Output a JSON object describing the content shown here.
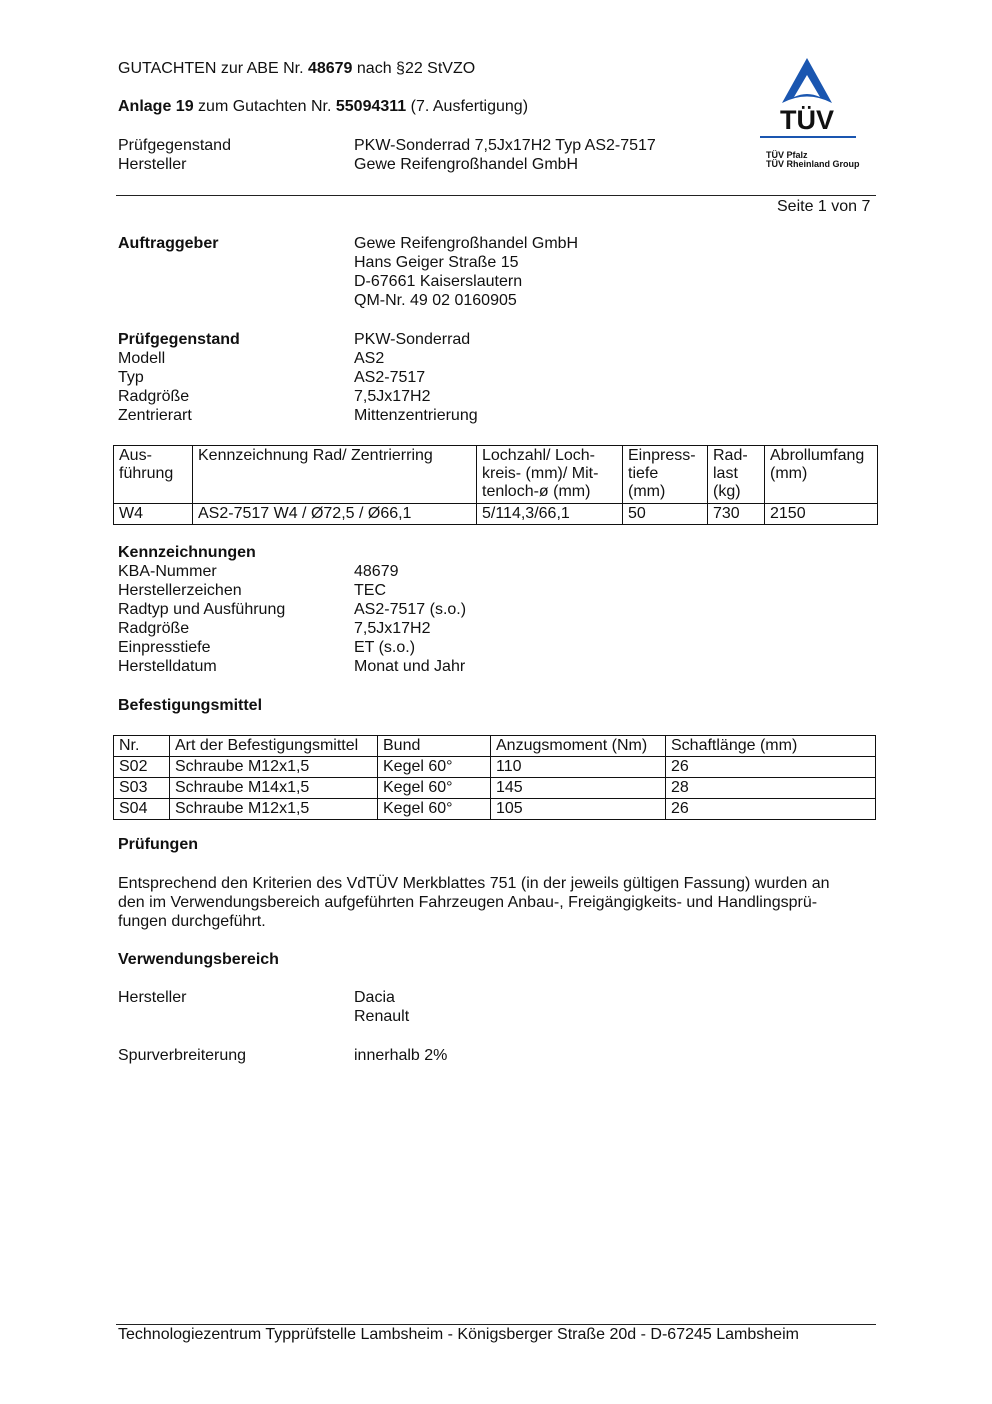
{
  "header": {
    "line1_pre": "GUTACHTEN zur ABE Nr. ",
    "line1_num": "48679",
    "line1_post": " nach §22 StVZO",
    "line2_pre": "Anlage 19",
    "line2_mid": " zum Gutachten Nr. ",
    "line2_num": "55094311",
    "line2_post": " (7. Ausfertigung)",
    "fields": [
      {
        "label": "Prüfgegenstand",
        "value": "PKW-Sonderrad 7,5Jx17H2 Typ AS2-7517"
      },
      {
        "label": "Hersteller",
        "value": "Gewe Reifengroßhandel GmbH"
      }
    ],
    "page": "Seite 1 von 7"
  },
  "logo": {
    "brand": "TÜV",
    "line1": "TÜV Pfalz",
    "line2": "TÜV Rheinland Group",
    "color": "#1a56b0"
  },
  "auftraggeber": {
    "label": "Auftraggeber",
    "lines": [
      "Gewe Reifengroßhandel GmbH",
      "Hans Geiger Straße 15",
      "D-67661 Kaiserslautern",
      "QM-Nr. 49 02 0160905"
    ]
  },
  "pruefgegenstand": {
    "rows": [
      {
        "label": "Prüfgegenstand",
        "value": "PKW-Sonderrad"
      },
      {
        "label": "Modell",
        "value": "AS2"
      },
      {
        "label": "Typ",
        "value": "AS2-7517"
      },
      {
        "label": "Radgröße",
        "value": "7,5Jx17H2"
      },
      {
        "label": "Zentrierart",
        "value": "Mittenzentrierung"
      }
    ]
  },
  "wheel_table": {
    "headers": [
      "Aus-\nführung",
      "Kennzeichnung Rad/ Zentrierring",
      "Lochzahl/ Loch-\nkreis- (mm)/ Mit-\ntenloch-ø (mm)",
      "Einpress-\ntiefe\n(mm)",
      "Rad-\nlast\n(kg)",
      "Abrollumfang\n(mm)"
    ],
    "rows": [
      [
        "W4",
        "AS2-7517 W4 / Ø72,5 / Ø66,1",
        "5/114,3/66,1",
        "50",
        "730",
        "2150"
      ]
    ]
  },
  "kennzeichnungen": {
    "title": "Kennzeichnungen",
    "rows": [
      {
        "label": "KBA-Nummer",
        "value": "48679"
      },
      {
        "label": "Herstellerzeichen",
        "value": "TEC"
      },
      {
        "label": "Radtyp und Ausführung",
        "value": "AS2-7517 (s.o.)"
      },
      {
        "label": "Radgröße",
        "value": "7,5Jx17H2"
      },
      {
        "label": "Einpresstiefe",
        "value": "ET (s.o.)"
      },
      {
        "label": "Herstelldatum",
        "value": "Monat und Jahr"
      }
    ]
  },
  "befestigung": {
    "title": "Befestigungsmittel",
    "headers": [
      "Nr.",
      "Art der Befestigungsmittel",
      "Bund",
      "Anzugsmoment (Nm)",
      "Schaftlänge (mm)"
    ],
    "rows": [
      [
        "S02",
        "Schraube M12x1,5",
        "Kegel 60°",
        "110",
        "26"
      ],
      [
        "S03",
        "Schraube M14x1,5",
        "Kegel 60°",
        "145",
        "28"
      ],
      [
        "S04",
        "Schraube M12x1,5",
        "Kegel 60°",
        "105",
        "26"
      ]
    ]
  },
  "pruefungen": {
    "title": "Prüfungen",
    "lines": [
      "Entsprechend den Kriterien des VdTÜV Merkblattes 751 (in der jeweils gültigen Fassung) wurden an",
      "den im Verwendungsbereich aufgeführten Fahrzeugen Anbau-, Freigängigkeits- und Handlingsprü-",
      "fungen durchgeführt."
    ]
  },
  "verwendung": {
    "title": "Verwendungsbereich",
    "hersteller_label": "Hersteller",
    "hersteller": [
      "Dacia",
      "Renault"
    ],
    "spur_label": "Spurverbreiterung",
    "spur_value": "innerhalb 2%"
  },
  "footer": "Technologiezentrum Typprüfstelle Lambsheim - Königsberger Straße 20d - D-67245 Lambsheim"
}
